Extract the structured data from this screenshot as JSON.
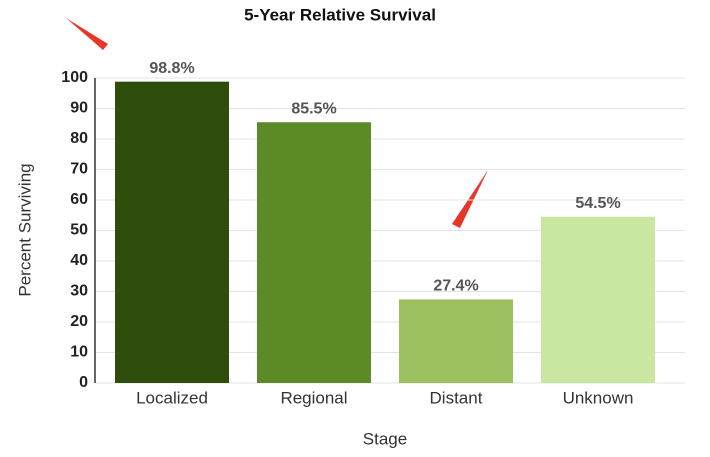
{
  "chart_data": {
    "type": "bar",
    "title": "5-Year Relative Survival",
    "x_label": "Stage",
    "y_label": "Percent Surviving",
    "categories": [
      "Localized",
      "Regional",
      "Distant",
      "Unknown"
    ],
    "values": [
      98.8,
      85.5,
      27.4,
      54.5
    ],
    "value_labels": [
      "98.8%",
      "85.5%",
      "27.4%",
      "54.5%"
    ],
    "colors": [
      "#2e4d0b",
      "#5b8a27",
      "#9cc060",
      "#cae7a2"
    ],
    "ylim": [
      0,
      100
    ],
    "yticks": [
      0,
      10,
      20,
      30,
      40,
      50,
      60,
      70,
      80,
      90,
      100
    ],
    "grid": true
  }
}
